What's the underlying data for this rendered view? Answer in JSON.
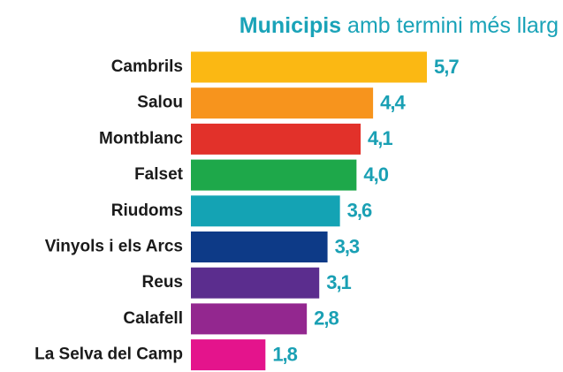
{
  "chart_data": {
    "type": "bar",
    "orientation": "horizontal",
    "title_parts": [
      "Municipis",
      "amb termini més llarg"
    ],
    "categories": [
      "Cambrils",
      "Salou",
      "Montblanc",
      "Falset",
      "Riudoms",
      "Vinyols i els Arcs",
      "Reus",
      "Calafell",
      "La Selva del Camp"
    ],
    "values": [
      5.7,
      4.4,
      4.1,
      4.0,
      3.6,
      3.3,
      3.1,
      2.8,
      1.8
    ],
    "value_labels": [
      "5,7",
      "4,4",
      "4,1",
      "4,0",
      "3,6",
      "3,3",
      "3,1",
      "2,8",
      "1,8"
    ],
    "colors": [
      "#fbb813",
      "#f7941d",
      "#e2312a",
      "#1ea84a",
      "#14a3b4",
      "#0d3a87",
      "#5b2d8e",
      "#93278f",
      "#e4148c"
    ],
    "label_color": "#1aa0b4"
  }
}
